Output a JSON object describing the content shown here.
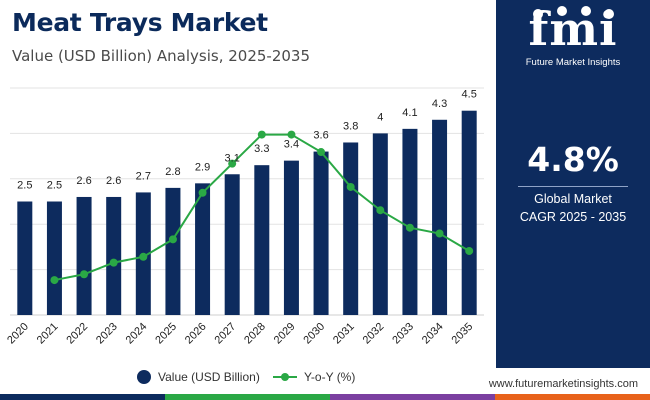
{
  "header": {
    "title": "Meat Trays Market",
    "subtitle": "Value (USD Billion) Analysis, 2025-2035"
  },
  "side_panel": {
    "logo_mark": "fmi",
    "logo_text": "Future Market Insights",
    "cagr_value": "4.8%",
    "cagr_label_line1": "Global Market",
    "cagr_label_line2": "CAGR 2025 - 2035"
  },
  "footer": {
    "website": "www.futuremarketinsights.com"
  },
  "legend": {
    "bar_label": "Value (USD Billion)",
    "line_label": "Y-o-Y (%)"
  },
  "colors": {
    "bar": "#0d2b5e",
    "line": "#2aa845",
    "panel": "#0d2b5e",
    "title": "#0b2a5b",
    "gridline": "#e3e3e3",
    "bottom_bar": [
      "#0d2b5e",
      "#2aa845",
      "#7b3fa0",
      "#e8621a"
    ]
  },
  "chart_data": {
    "type": "bar",
    "title": "Meat Trays Market",
    "xlabel": "",
    "ylabel": "",
    "categories": [
      "2020",
      "2021",
      "2022",
      "2023",
      "2024",
      "2025",
      "2026",
      "2027",
      "2028",
      "2029",
      "2030",
      "2031",
      "2032",
      "2033",
      "2034",
      "2035"
    ],
    "series": [
      {
        "name": "Value (USD Billion)",
        "type": "bar",
        "values": [
          2.5,
          2.5,
          2.6,
          2.6,
          2.7,
          2.8,
          2.9,
          3.1,
          3.3,
          3.4,
          3.6,
          3.8,
          4.0,
          4.1,
          4.3,
          4.5
        ],
        "labels": [
          "2.5",
          "2.5",
          "2.6",
          "2.6",
          "2.7",
          "2.8",
          "2.9",
          "3.1",
          "3.3",
          "3.4",
          "3.6",
          "3.8",
          "4",
          "4.1",
          "4.3",
          "4.5"
        ]
      },
      {
        "name": "Y-o-Y (%)",
        "type": "line",
        "values": [
          null,
          1.0,
          1.5,
          2.5,
          3.0,
          4.5,
          8.5,
          11.0,
          13.5,
          13.5,
          12.0,
          9.0,
          7.0,
          5.5,
          5.0,
          3.5
        ]
      }
    ],
    "bar_ylim": [
      0,
      5.0
    ],
    "line_ylim": [
      -2.0,
      17.5
    ],
    "grid": true
  }
}
